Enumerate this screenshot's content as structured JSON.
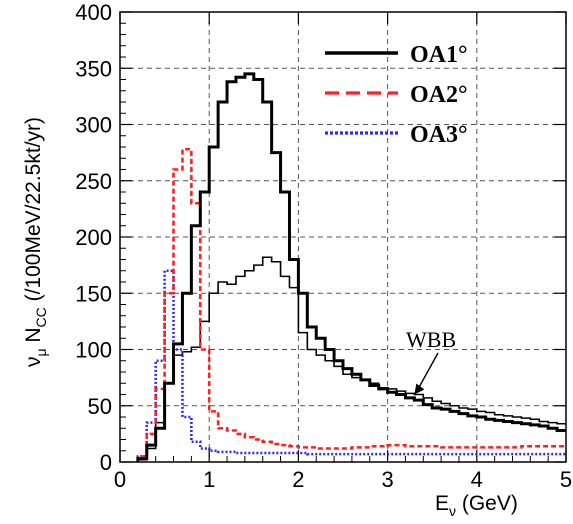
{
  "chart_data": {
    "type": "line",
    "ylabel": {
      "prefix": "ν",
      "prefix_sub": "μ",
      "main": " N",
      "main_sub": "CC",
      "suffix": " (/100MeV/22.5kt/yr)"
    },
    "xlabel": {
      "main": "E",
      "sub": "ν",
      "suffix": " (GeV)"
    },
    "xlim": [
      0,
      5
    ],
    "ylim": [
      0,
      400
    ],
    "xticks": [
      0,
      1,
      2,
      3,
      4,
      5
    ],
    "yticks": [
      0,
      50,
      100,
      150,
      200,
      250,
      300,
      350,
      400
    ],
    "grid": true,
    "legend_position": "top-right",
    "annotation": {
      "text": "WBB",
      "target_x": 3.3,
      "target_y": 60
    },
    "series": [
      {
        "name": "OA1°",
        "color": "#000000",
        "style": "solid-thick",
        "edges": [
          0.2,
          0.3,
          0.4,
          0.5,
          0.6,
          0.7,
          0.8,
          0.9,
          1.0,
          1.1,
          1.2,
          1.3,
          1.4,
          1.5,
          1.6,
          1.7,
          1.8,
          1.9,
          2.0,
          2.1,
          2.2,
          2.3,
          2.4,
          2.5,
          2.6,
          2.7,
          2.8,
          2.9,
          3.0,
          3.1,
          3.2,
          3.3,
          3.4,
          3.5,
          3.6,
          3.7,
          3.8,
          3.9,
          4.0,
          4.1,
          4.2,
          4.3,
          4.4,
          4.5,
          4.6,
          4.7,
          4.8,
          4.9,
          5.0
        ],
        "values": [
          3,
          15,
          30,
          70,
          105,
          150,
          210,
          240,
          280,
          320,
          338,
          342,
          345,
          340,
          320,
          275,
          240,
          180,
          150,
          120,
          110,
          100,
          90,
          83,
          78,
          73,
          68,
          65,
          62,
          60,
          57,
          55,
          51,
          48,
          47,
          45,
          43,
          41,
          40,
          38,
          37,
          36,
          35,
          34,
          33,
          32,
          30,
          28
        ]
      },
      {
        "name": "OA2°",
        "color": "#ff2020",
        "style": "dashed",
        "edges": [
          0.2,
          0.3,
          0.4,
          0.5,
          0.6,
          0.7,
          0.8,
          0.9,
          1.0,
          1.1,
          1.2,
          1.3,
          1.4,
          1.5,
          1.6,
          1.7,
          1.8,
          1.9,
          2.0,
          2.1,
          2.2,
          2.3,
          2.4,
          2.5,
          2.6,
          2.7,
          2.8,
          2.9,
          3.0,
          3.1,
          3.2,
          3.3,
          3.4,
          3.5,
          3.6,
          3.7,
          3.8,
          3.9,
          4.0,
          4.1,
          4.2,
          4.3,
          4.4,
          4.5,
          4.6,
          4.7,
          4.8,
          4.9,
          5.0
        ],
        "values": [
          5,
          25,
          65,
          150,
          260,
          278,
          230,
          100,
          45,
          30,
          28,
          25,
          22,
          20,
          18,
          16,
          15,
          14,
          13,
          13,
          12,
          12,
          12,
          12,
          13,
          13,
          14,
          14,
          15,
          15,
          14,
          14,
          14,
          14,
          13,
          13,
          13,
          13,
          13,
          13,
          13,
          13,
          13,
          14,
          14,
          14,
          14,
          14
        ]
      },
      {
        "name": "OA3°",
        "color": "#2a2aff",
        "style": "dotted",
        "edges": [
          0.2,
          0.3,
          0.4,
          0.5,
          0.6,
          0.7,
          0.8,
          0.9,
          1.0,
          1.1,
          1.2,
          1.3,
          1.4,
          1.5,
          1.6,
          1.7,
          1.8,
          1.9,
          2.0,
          2.1,
          2.2,
          2.3,
          2.4,
          2.5,
          2.6,
          2.7,
          2.8,
          2.9,
          3.0,
          3.1,
          3.2,
          3.3,
          3.4,
          3.5,
          3.6,
          3.7,
          3.8,
          3.9,
          4.0,
          4.1,
          4.2,
          4.3,
          4.4,
          4.5,
          4.6,
          4.7,
          4.8,
          4.9,
          5.0
        ],
        "values": [
          5,
          35,
          90,
          170,
          100,
          40,
          18,
          12,
          10,
          9,
          9,
          8,
          8,
          8,
          8,
          8,
          8,
          8,
          8,
          7,
          7,
          7,
          7,
          7,
          7,
          7,
          7,
          7,
          7,
          7,
          7,
          7,
          7,
          7,
          7,
          7,
          7,
          7,
          7,
          7,
          7,
          7,
          7,
          7,
          7,
          7,
          7,
          7
        ]
      },
      {
        "name": "WBB",
        "color": "#000000",
        "style": "solid-thin",
        "edges": [
          0.2,
          0.3,
          0.4,
          0.5,
          0.6,
          0.7,
          0.8,
          0.9,
          1.0,
          1.1,
          1.2,
          1.3,
          1.4,
          1.5,
          1.6,
          1.7,
          1.8,
          1.9,
          2.0,
          2.1,
          2.2,
          2.3,
          2.4,
          2.5,
          2.6,
          2.7,
          2.8,
          2.9,
          3.0,
          3.1,
          3.2,
          3.3,
          3.4,
          3.5,
          3.6,
          3.7,
          3.8,
          3.9,
          4.0,
          4.1,
          4.2,
          4.3,
          4.4,
          4.5,
          4.6,
          4.7,
          4.8,
          4.9,
          5.0
        ],
        "values": [
          2,
          12,
          35,
          70,
          95,
          98,
          102,
          125,
          150,
          160,
          158,
          165,
          170,
          175,
          182,
          178,
          165,
          155,
          115,
          100,
          95,
          90,
          85,
          78,
          75,
          73,
          70,
          66,
          65,
          63,
          61,
          60,
          57,
          54,
          52,
          50,
          48,
          47,
          45,
          44,
          42,
          41,
          40,
          39,
          38,
          36,
          35,
          34
        ]
      }
    ]
  }
}
